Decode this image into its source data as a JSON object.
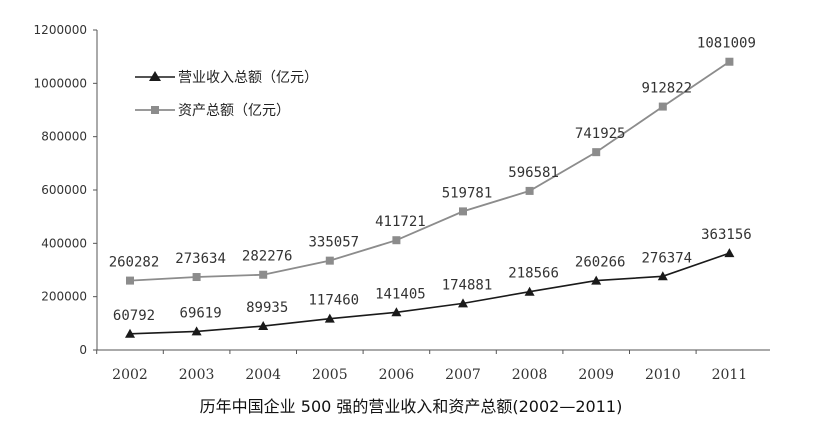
{
  "chart_data": {
    "type": "line",
    "title": "历年中国企业 500 强的营业收入和资产总额(2002—2011)",
    "x": [
      "2002",
      "2003",
      "2004",
      "2005",
      "2006",
      "2007",
      "2008",
      "2009",
      "2010",
      "2011"
    ],
    "ylim": [
      0,
      1200000
    ],
    "yticks": [
      "0",
      "200000",
      "400000",
      "600000",
      "800000",
      "1000000",
      "1200000"
    ],
    "grid": false,
    "legend_position": "top-left",
    "series": [
      {
        "name": "营业收入总额（亿元）",
        "marker": "triangle",
        "color": "#1a1a1a",
        "values": [
          60792,
          69619,
          89935,
          117460,
          141405,
          174881,
          218566,
          260266,
          276374,
          363156
        ],
        "labels": [
          "60792",
          "69619",
          "89935",
          "117460",
          "141405",
          "174881",
          "218566",
          "260266",
          "276374",
          "363156"
        ]
      },
      {
        "name": "资产总额（亿元）",
        "marker": "square",
        "color": "#8c8c8c",
        "values": [
          260282,
          273634,
          282276,
          335057,
          411721,
          519781,
          596581,
          741925,
          912822,
          1081009
        ],
        "labels": [
          "260282",
          "273634",
          "282276",
          "335057",
          "411721",
          "519781",
          "596581",
          "741925",
          "912822",
          "1081009"
        ]
      }
    ]
  }
}
